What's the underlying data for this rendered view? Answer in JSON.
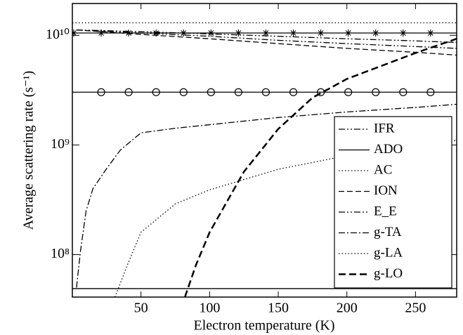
{
  "chart_data": {
    "type": "line",
    "xlabel": "Electron temperature (K)",
    "ylabel": "Average scattering rate (s⁻¹)",
    "xlim": [
      0,
      280
    ],
    "xticks": [
      50,
      100,
      150,
      200,
      250
    ],
    "ylim": [
      41000000,
      19500000000
    ],
    "log_y": true,
    "yticks": [
      {
        "value": 100000000,
        "label": "10⁸"
      },
      {
        "value": 1000000000,
        "label": "10⁹"
      },
      {
        "value": 10000000000,
        "label": "10¹⁰"
      }
    ],
    "legend": "lower right",
    "series": [
      {
        "name": "IFR",
        "style": "dash-dot-dot",
        "color": "#000",
        "x": [
          3,
          50,
          100,
          150,
          200,
          250,
          280
        ],
        "values": [
          11200000000,
          10800000000,
          10300000000,
          9800000000,
          9300000000,
          8900000000,
          8600000000
        ]
      },
      {
        "name": "ADO",
        "style": "solid",
        "color": "#000",
        "x": [
          0,
          280
        ],
        "values": [
          49000000,
          49000000
        ]
      },
      {
        "name": "AC",
        "style": "dotted",
        "color": "#000",
        "x": [
          0,
          280
        ],
        "values": [
          13000000000,
          13000000000
        ]
      },
      {
        "name": "ION",
        "style": "dashed",
        "color": "#000",
        "x": [
          3,
          50,
          100,
          150,
          200,
          250,
          280
        ],
        "values": [
          11200000000,
          10200000000,
          9300000000,
          8400000000,
          7600000000,
          7000000000,
          6600000000
        ]
      },
      {
        "name": "E_E",
        "style": "dash-dot-dot",
        "color": "#000",
        "x": [
          3,
          50,
          100,
          150,
          200,
          250,
          280
        ],
        "values": [
          11200000000,
          10500000000,
          9800000000,
          9000000000,
          8400000000,
          7900000000,
          7600000000
        ]
      },
      {
        "name": "g-TA",
        "style": "dash-dot",
        "color": "#000",
        "x": [
          3,
          6,
          10,
          15,
          25,
          35,
          50,
          75,
          100,
          150,
          200,
          250,
          280
        ],
        "values": [
          50000000,
          110000000,
          250000000,
          400000000,
          610000000,
          900000000,
          1290000000,
          1420000000,
          1530000000,
          1780000000,
          2000000000,
          2200000000,
          2350000000
        ]
      },
      {
        "name": "g-LA",
        "style": "dotted",
        "color": "#000",
        "x": [
          31,
          35,
          40,
          50,
          75,
          100,
          150,
          200,
          250,
          280
        ],
        "values": [
          41000000,
          55000000,
          80000000,
          160000000,
          290000000,
          390000000,
          600000000,
          800000000,
          980000000,
          1100000000
        ]
      },
      {
        "name": "g-LO",
        "style": "thick-dashed",
        "color": "#000",
        "x": [
          82,
          90,
          100,
          125,
          150,
          175,
          200,
          250,
          280
        ],
        "values": [
          41000000,
          80000000,
          160000000,
          570000000,
          1400000000,
          2700000000,
          4000000000,
          6900000000,
          9300000000
        ]
      },
      {
        "style": "solid",
        "marker": "star",
        "color": "#000",
        "x": [
          1,
          21,
          41,
          61,
          81,
          101,
          121,
          141,
          161,
          181,
          201,
          221,
          241,
          261
        ],
        "values": [
          10500000000,
          10500000000,
          10500000000,
          10500000000,
          10500000000,
          10500000000,
          10500000000,
          10500000000,
          10500000000,
          10500000000,
          10500000000,
          10500000000,
          10500000000,
          10500000000
        ]
      },
      {
        "style": "solid",
        "marker": "circle",
        "color": "#000",
        "x": [
          21,
          41,
          61,
          81,
          101,
          121,
          141,
          161,
          181,
          201,
          221,
          241,
          261
        ],
        "values": [
          3030000000,
          3030000000,
          3030000000,
          3030000000,
          3030000000,
          3030000000,
          3030000000,
          3030000000,
          3030000000,
          3030000000,
          3030000000,
          3030000000,
          3030000000
        ]
      }
    ]
  }
}
